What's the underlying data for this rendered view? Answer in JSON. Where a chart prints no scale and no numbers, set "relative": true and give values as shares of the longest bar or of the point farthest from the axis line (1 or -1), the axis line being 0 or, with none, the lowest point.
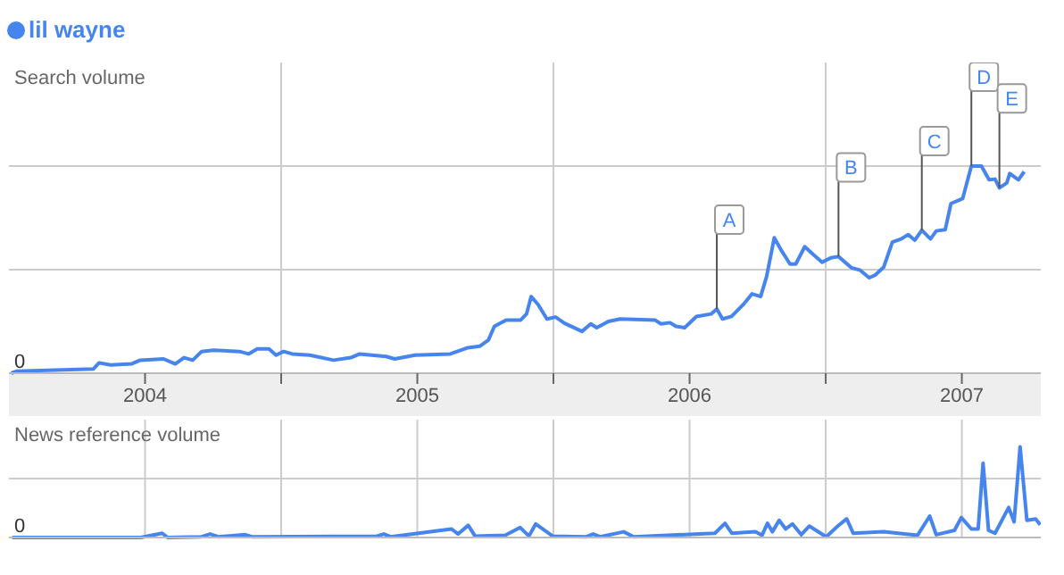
{
  "chart_data": [
    {
      "type": "line",
      "relative": true,
      "ylabel": "Search volume",
      "legend": "top left",
      "grid": true,
      "tick_labels": "x",
      "xlim": [
        2004,
        2007.79
      ],
      "xticks": [
        {
          "value": 2004.5,
          "label": "2004"
        },
        {
          "value": 2005,
          "label": null
        },
        {
          "value": 2005.5,
          "label": "2005"
        },
        {
          "value": 2006,
          "label": null
        },
        {
          "value": 2006.5,
          "label": "2006"
        },
        {
          "value": 2007,
          "label": null
        },
        {
          "value": 2007.5,
          "label": "2007"
        }
      ],
      "annotations": [
        {
          "text": "0",
          "y": 0
        },
        {
          "text": "A",
          "x": 2006.6,
          "y": 0.31
        },
        {
          "text": "B",
          "x": 2007.047,
          "y": 0.563
        },
        {
          "text": "C",
          "x": 2007.353,
          "y": 0.69
        },
        {
          "text": "D",
          "x": 2007.535,
          "y": 1.0
        },
        {
          "text": "E",
          "x": 2007.638,
          "y": 0.895
        }
      ],
      "series": [
        {
          "name": "lil wayne",
          "color": "#4684ee",
          "x": [
            2004.009,
            2004.03,
            2004.31,
            2004.331,
            2004.374,
            2004.45,
            2004.482,
            2004.568,
            2004.611,
            2004.643,
            2004.675,
            2004.708,
            2004.751,
            2004.847,
            2004.88,
            2004.912,
            2004.955,
            2004.981,
            2005.009,
            2005.041,
            2005.105,
            2005.192,
            2005.256,
            2005.288,
            2005.385,
            2005.417,
            2005.492,
            2005.621,
            2005.686,
            2005.729,
            2005.761,
            2005.783,
            2005.826,
            2005.879,
            2005.901,
            2005.918,
            2005.944,
            2005.976,
            2006.008,
            2006.041,
            2006.105,
            2006.137,
            2006.159,
            2006.202,
            2006.245,
            2006.374,
            2006.395,
            2006.428,
            2006.45,
            2006.482,
            2006.525,
            2006.579,
            2006.6,
            2006.621,
            2006.654,
            2006.697,
            2006.729,
            2006.761,
            2006.783,
            2006.811,
            2006.837,
            2006.869,
            2006.89,
            2006.923,
            2006.955,
            2006.987,
            2007.019,
            2007.047,
            2007.095,
            2007.127,
            2007.159,
            2007.181,
            2007.213,
            2007.245,
            2007.277,
            2007.303,
            2007.327,
            2007.353,
            2007.385,
            2007.406,
            2007.439,
            2007.46,
            2007.503,
            2007.535,
            2007.572,
            2007.6,
            2007.622,
            2007.638,
            2007.665,
            2007.676,
            2007.708,
            2007.729
          ],
          "values": [
            0,
            0.01,
            0.02,
            0.05,
            0.04,
            0.045,
            0.063,
            0.069,
            0.045,
            0.075,
            0.063,
            0.105,
            0.111,
            0.105,
            0.093,
            0.117,
            0.117,
            0.087,
            0.105,
            0.093,
            0.087,
            0.063,
            0.075,
            0.093,
            0.081,
            0.069,
            0.087,
            0.093,
            0.123,
            0.13,
            0.16,
            0.226,
            0.256,
            0.256,
            0.286,
            0.37,
            0.331,
            0.262,
            0.271,
            0.241,
            0.202,
            0.238,
            0.22,
            0.25,
            0.262,
            0.256,
            0.238,
            0.244,
            0.226,
            0.22,
            0.274,
            0.286,
            0.31,
            0.262,
            0.274,
            0.331,
            0.383,
            0.37,
            0.467,
            0.654,
            0.593,
            0.527,
            0.527,
            0.611,
            0.572,
            0.536,
            0.557,
            0.563,
            0.509,
            0.497,
            0.461,
            0.473,
            0.512,
            0.633,
            0.648,
            0.669,
            0.642,
            0.69,
            0.648,
            0.687,
            0.693,
            0.819,
            0.843,
            1.0,
            1.0,
            0.934,
            0.937,
            0.895,
            0.919,
            0.964,
            0.934,
            0.973
          ]
        }
      ]
    },
    {
      "type": "line",
      "relative": true,
      "ylabel": "News reference volume",
      "grid": true,
      "tick_labels": false,
      "xlim": [
        2004,
        2007.79
      ],
      "xticks": [
        {
          "value": 2004.5,
          "label": null
        },
        {
          "value": 2005,
          "label": null
        },
        {
          "value": 2005.5,
          "label": null
        },
        {
          "value": 2006,
          "label": null
        },
        {
          "value": 2006.5,
          "label": null
        },
        {
          "value": 2007,
          "label": null
        },
        {
          "value": 2007.5,
          "label": null
        }
      ],
      "annotations": [
        {
          "text": "0",
          "y": 0
        }
      ],
      "series": [
        {
          "color": "#4684ee",
          "x": [
            2004.012,
            2004.484,
            2004.563,
            2004.583,
            2004.707,
            2004.739,
            2004.769,
            2004.868,
            2004.893,
            2005.352,
            2005.377,
            2005.402,
            2005.625,
            2005.65,
            2005.687,
            2005.712,
            2005.823,
            2005.878,
            2005.91,
            2005.935,
            2005.997,
            2006.121,
            2006.146,
            2006.171,
            2006.258,
            2006.295,
            2006.593,
            2006.63,
            2006.655,
            2006.742,
            2006.766,
            2006.786,
            2006.804,
            2006.829,
            2006.853,
            2006.878,
            2006.91,
            2006.94,
            2007.002,
            2007.044,
            2007.077,
            2007.101,
            2007.213,
            2007.337,
            2007.382,
            2007.406,
            2007.473,
            2007.498,
            2007.535,
            2007.56,
            2007.578,
            2007.598,
            2007.622,
            2007.672,
            2007.692,
            2007.714,
            2007.739,
            2007.771,
            2007.788
          ],
          "values": [
            0,
            0,
            0.047,
            0,
            0.008,
            0.039,
            0.008,
            0.031,
            0.008,
            0.016,
            0.039,
            0.008,
            0.094,
            0.039,
            0.134,
            0.016,
            0.024,
            0.11,
            0.016,
            0.15,
            0.016,
            0.008,
            0.039,
            0.008,
            0.063,
            0.008,
            0.047,
            0.157,
            0.047,
            0.063,
            0.024,
            0.157,
            0.063,
            0.189,
            0.094,
            0.15,
            0.031,
            0.126,
            0.008,
            0.126,
            0.205,
            0.047,
            0.063,
            0.024,
            0.236,
            0.031,
            0.079,
            0.22,
            0.094,
            0.094,
            0.819,
            0.079,
            0.047,
            0.331,
            0.173,
            1.0,
            0.189,
            0.205,
            0.141
          ]
        }
      ]
    }
  ]
}
